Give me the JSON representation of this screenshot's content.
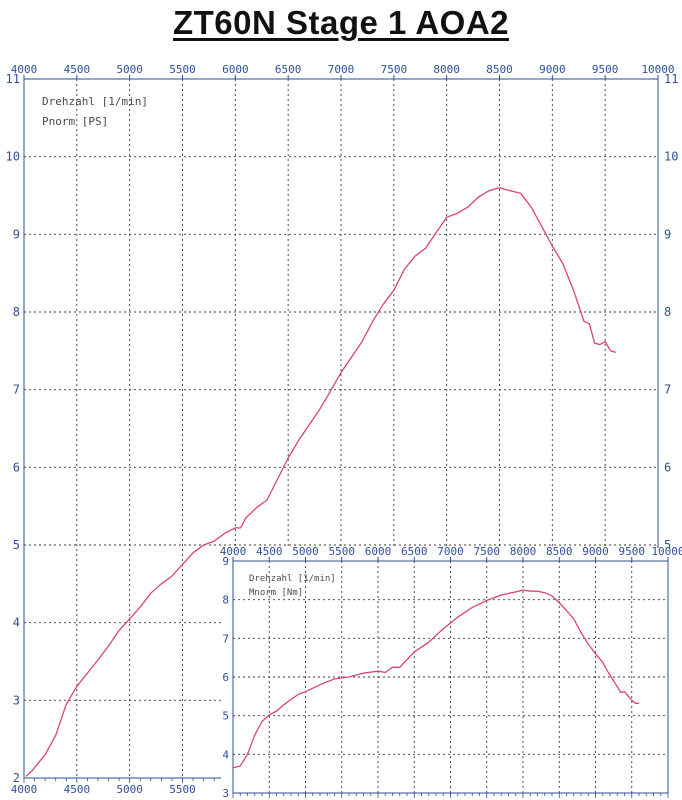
{
  "page_title": "ZT60N  Stage 1  AOA2",
  "chart_data": [
    {
      "id": "power",
      "type": "line",
      "legend": [
        "Drehzahl [1/min]",
        "Pnorm [PS]"
      ],
      "xlim": [
        4000,
        10000
      ],
      "ylim": [
        2,
        11
      ],
      "x_ticks_top": [
        4000,
        4500,
        5000,
        5500,
        6000,
        6500,
        7000,
        7500,
        8000,
        8500,
        9000,
        9500,
        10000
      ],
      "x_ticks_bottom": [
        4000,
        4500,
        5000,
        5500
      ],
      "y_ticks": [
        2,
        3,
        4,
        5,
        6,
        7,
        8,
        9,
        10,
        11
      ],
      "grid": true,
      "series": [
        {
          "color": "#d9456a",
          "x": [
            4020,
            4080,
            4200,
            4300,
            4400,
            4500,
            4600,
            4700,
            4800,
            4900,
            5000,
            5100,
            5200,
            5300,
            5400,
            5500,
            5600,
            5700,
            5800,
            5900,
            6000,
            6050,
            6100,
            6200,
            6300,
            6400,
            6500,
            6600,
            6700,
            6800,
            6900,
            7000,
            7100,
            7200,
            7300,
            7400,
            7500,
            7600,
            7700,
            7800,
            7900,
            8000,
            8100,
            8200,
            8300,
            8400,
            8500,
            8600,
            8700,
            8800,
            8900,
            9000,
            9100,
            9150,
            9200,
            9250,
            9300,
            9350,
            9400,
            9450,
            9500,
            9550,
            9600
          ],
          "y": [
            2.02,
            2.1,
            2.3,
            2.55,
            2.95,
            3.18,
            3.35,
            3.52,
            3.7,
            3.9,
            4.05,
            4.2,
            4.38,
            4.5,
            4.6,
            4.75,
            4.9,
            5.0,
            5.05,
            5.15,
            5.22,
            5.22,
            5.35,
            5.48,
            5.58,
            5.85,
            6.12,
            6.35,
            6.55,
            6.75,
            6.98,
            7.22,
            7.42,
            7.62,
            7.88,
            8.1,
            8.28,
            8.55,
            8.72,
            8.82,
            9.02,
            9.22,
            9.27,
            9.35,
            9.48,
            9.56,
            9.6,
            9.56,
            9.53,
            9.35,
            9.1,
            8.85,
            8.62,
            8.45,
            8.28,
            8.08,
            7.88,
            7.85,
            7.6,
            7.58,
            7.62,
            7.5,
            7.48
          ]
        }
      ]
    },
    {
      "id": "torque",
      "type": "line",
      "legend": [
        "Drehzahl [1/min]",
        "Mnorm [Nm]"
      ],
      "xlim": [
        4000,
        10000
      ],
      "ylim": [
        3,
        9
      ],
      "x_ticks_top": [
        4000,
        4500,
        5000,
        5500,
        6000,
        6500,
        7000,
        7500,
        8000,
        8500,
        9000,
        9500,
        10000
      ],
      "y_ticks": [
        3,
        4,
        5,
        6,
        7,
        8,
        9
      ],
      "grid": true,
      "series": [
        {
          "color": "#d9456a",
          "x": [
            4000,
            4100,
            4200,
            4300,
            4400,
            4500,
            4600,
            4700,
            4800,
            4900,
            5000,
            5200,
            5400,
            5600,
            5800,
            6000,
            6100,
            6200,
            6300,
            6400,
            6500,
            6700,
            6900,
            7100,
            7300,
            7500,
            7700,
            7900,
            8000,
            8100,
            8200,
            8300,
            8400,
            8500,
            8600,
            8700,
            8800,
            8900,
            9000,
            9100,
            9150,
            9200,
            9300,
            9350,
            9400,
            9500,
            9550,
            9600
          ],
          "y": [
            3.65,
            3.7,
            4.0,
            4.5,
            4.85,
            5.02,
            5.12,
            5.28,
            5.42,
            5.55,
            5.62,
            5.8,
            5.95,
            6.0,
            6.1,
            6.15,
            6.12,
            6.25,
            6.25,
            6.45,
            6.65,
            6.9,
            7.25,
            7.55,
            7.8,
            7.98,
            8.12,
            8.2,
            8.25,
            8.22,
            8.22,
            8.18,
            8.1,
            7.92,
            7.72,
            7.5,
            7.15,
            6.85,
            6.6,
            6.38,
            6.2,
            6.05,
            5.75,
            5.6,
            5.62,
            5.4,
            5.32,
            5.32
          ]
        }
      ]
    }
  ]
}
